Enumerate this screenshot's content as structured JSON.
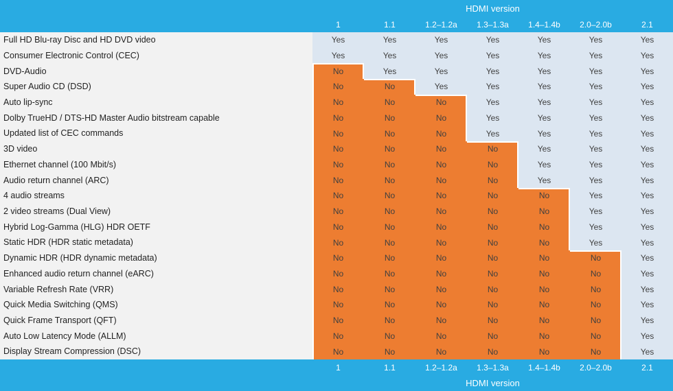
{
  "chart_data": {
    "type": "table",
    "title": "HDMI version",
    "footer_title": "HDMI version",
    "columns": [
      "1",
      "1.1",
      "1.2–1.2a",
      "1.3–1.3a",
      "1.4–1.4b",
      "2.0–2.0b",
      "2.1"
    ],
    "rows": [
      {
        "feature": "Full HD Blu-ray Disc and HD DVD video",
        "values": [
          "Yes",
          "Yes",
          "Yes",
          "Yes",
          "Yes",
          "Yes",
          "Yes"
        ]
      },
      {
        "feature": "Consumer Electronic Control (CEC)",
        "values": [
          "Yes",
          "Yes",
          "Yes",
          "Yes",
          "Yes",
          "Yes",
          "Yes"
        ]
      },
      {
        "feature": "DVD-Audio",
        "values": [
          "No",
          "Yes",
          "Yes",
          "Yes",
          "Yes",
          "Yes",
          "Yes"
        ]
      },
      {
        "feature": "Super Audio CD (DSD)",
        "values": [
          "No",
          "No",
          "Yes",
          "Yes",
          "Yes",
          "Yes",
          "Yes"
        ]
      },
      {
        "feature": "Auto lip-sync",
        "values": [
          "No",
          "No",
          "No",
          "Yes",
          "Yes",
          "Yes",
          "Yes"
        ]
      },
      {
        "feature": "Dolby TrueHD / DTS-HD Master Audio bitstream capable",
        "values": [
          "No",
          "No",
          "No",
          "Yes",
          "Yes",
          "Yes",
          "Yes"
        ]
      },
      {
        "feature": "Updated list of CEC commands",
        "values": [
          "No",
          "No",
          "No",
          "Yes",
          "Yes",
          "Yes",
          "Yes"
        ]
      },
      {
        "feature": "3D video",
        "values": [
          "No",
          "No",
          "No",
          "No",
          "Yes",
          "Yes",
          "Yes"
        ]
      },
      {
        "feature": "Ethernet channel (100 Mbit/s)",
        "values": [
          "No",
          "No",
          "No",
          "No",
          "Yes",
          "Yes",
          "Yes"
        ]
      },
      {
        "feature": "Audio return channel (ARC)",
        "values": [
          "No",
          "No",
          "No",
          "No",
          "Yes",
          "Yes",
          "Yes"
        ]
      },
      {
        "feature": "4 audio streams",
        "values": [
          "No",
          "No",
          "No",
          "No",
          "No",
          "Yes",
          "Yes"
        ]
      },
      {
        "feature": "2 video streams (Dual View)",
        "values": [
          "No",
          "No",
          "No",
          "No",
          "No",
          "Yes",
          "Yes"
        ]
      },
      {
        "feature": "Hybrid Log-Gamma (HLG) HDR OETF",
        "values": [
          "No",
          "No",
          "No",
          "No",
          "No",
          "Yes",
          "Yes"
        ]
      },
      {
        "feature": "Static HDR (HDR static metadata)",
        "values": [
          "No",
          "No",
          "No",
          "No",
          "No",
          "Yes",
          "Yes"
        ]
      },
      {
        "feature": "Dynamic HDR (HDR dynamic metadata)",
        "values": [
          "No",
          "No",
          "No",
          "No",
          "No",
          "No",
          "Yes"
        ]
      },
      {
        "feature": "Enhanced audio return channel (eARC)",
        "values": [
          "No",
          "No",
          "No",
          "No",
          "No",
          "No",
          "Yes"
        ]
      },
      {
        "feature": "Variable Refresh Rate (VRR)",
        "values": [
          "No",
          "No",
          "No",
          "No",
          "No",
          "No",
          "Yes"
        ]
      },
      {
        "feature": "Quick Media Switching (QMS)",
        "values": [
          "No",
          "No",
          "No",
          "No",
          "No",
          "No",
          "Yes"
        ]
      },
      {
        "feature": "Quick Frame Transport (QFT)",
        "values": [
          "No",
          "No",
          "No",
          "No",
          "No",
          "No",
          "Yes"
        ]
      },
      {
        "feature": "Auto Low Latency Mode (ALLM)",
        "values": [
          "No",
          "No",
          "No",
          "No",
          "No",
          "No",
          "Yes"
        ]
      },
      {
        "feature": "Display Stream Compression (DSC)",
        "values": [
          "No",
          "No",
          "No",
          "No",
          "No",
          "No",
          "Yes"
        ]
      }
    ],
    "layout": {
      "legend": "none",
      "grid": "off",
      "header_repeated_in_footer": true
    }
  },
  "colors": {
    "band_bg": "#29ABE2",
    "band_text": "#FFFFFF",
    "yes_bg": "#DCE6F1",
    "no_bg": "#ED7D31",
    "value_text": "#3F3F3F",
    "label_bg": "#F2F2F2",
    "label_text": "#1F1F1F",
    "divider": "#FFFFFF"
  }
}
